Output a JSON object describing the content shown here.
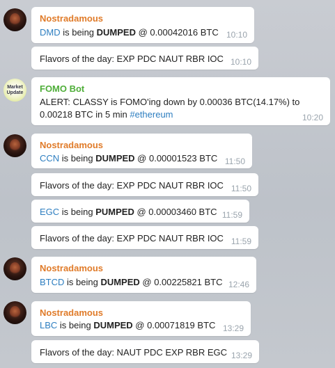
{
  "colors": {
    "nostradamous_name": "#e07b29",
    "fomo_name": "#4fae39",
    "link": "#2d7ec0",
    "time": "#9aa4ad"
  },
  "avatars": {
    "fomo_text": "Market Update"
  },
  "messages": [
    {
      "sender": "Nostradamous",
      "coin": "DMD",
      "mid": " is being ",
      "action": "DUMPED",
      "rest": " @ 0.00042016 BTC",
      "time": "10:10"
    },
    {
      "text": "Flavors of the day: EXP PDC NAUT RBR IOC",
      "time": "10:10"
    },
    {
      "sender": "FOMO Bot",
      "line1": "ALERT: CLASSY is FOMO'ing down by 0.00036 BTC(14.17%) to",
      "line2": "0.00218 BTC in 5 min ",
      "hashtag": "#ethereum",
      "time": "10:20"
    },
    {
      "sender": "Nostradamous",
      "coin": "CCN",
      "mid": " is being ",
      "action": "DUMPED",
      "rest": " @ 0.00001523 BTC",
      "time": "11:50"
    },
    {
      "text": "Flavors of the day: EXP PDC NAUT RBR IOC",
      "time": "11:50"
    },
    {
      "coin": "EGC",
      "mid": " is being ",
      "action": "PUMPED",
      "rest": " @ 0.00003460 BTC",
      "time": "11:59"
    },
    {
      "text": "Flavors of the day: EXP PDC NAUT RBR IOC",
      "time": "11:59"
    },
    {
      "sender": "Nostradamous",
      "coin": "BTCD",
      "mid": " is being ",
      "action": "DUMPED",
      "rest": " @ 0.00225821 BTC",
      "time": "12:46"
    },
    {
      "sender": "Nostradamous",
      "coin": "LBC",
      "mid": " is being ",
      "action": "DUMPED",
      "rest": " @ 0.00071819 BTC",
      "time": "13:29"
    },
    {
      "text": "Flavors of the day: NAUT PDC EXP RBR EGC",
      "time": "13:29"
    }
  ]
}
